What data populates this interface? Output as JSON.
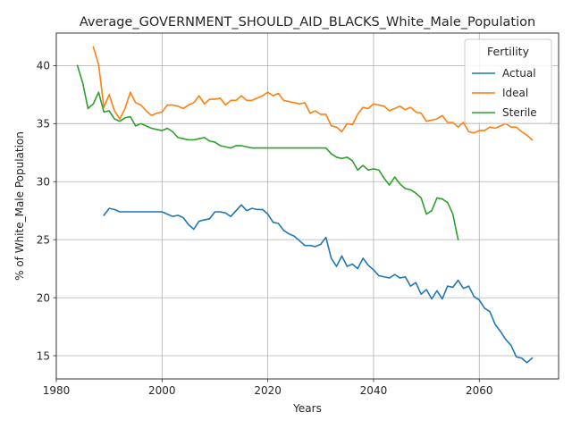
{
  "chart_data": {
    "type": "line",
    "title": "Average_GOVERNMENT_SHOULD_AID_BLACKS_White_Male_Population",
    "xlabel": "Years",
    "ylabel": "% of White_Male Population",
    "xlim": [
      1980,
      2075
    ],
    "ylim": [
      13,
      42.8
    ],
    "xticks": [
      1980,
      2000,
      2020,
      2040,
      2060
    ],
    "yticks": [
      15,
      20,
      25,
      30,
      35,
      40
    ],
    "grid": true,
    "legend": {
      "title": "Fertility",
      "placement": "top-right"
    },
    "series": [
      {
        "name": "Actual",
        "color": "#1f77b4",
        "x": [
          1989,
          1990,
          1991,
          1992,
          1993,
          1994,
          1995,
          1996,
          1997,
          1998,
          1999,
          2000,
          2001,
          2002,
          2003,
          2004,
          2005,
          2006,
          2007,
          2008,
          2009,
          2010,
          2011,
          2012,
          2013,
          2014,
          2015,
          2016,
          2017,
          2018,
          2019,
          2020,
          2021,
          2022,
          2023,
          2024,
          2025,
          2026,
          2027,
          2028,
          2029,
          2030,
          2031,
          2032,
          2033,
          2034,
          2035,
          2036,
          2037,
          2038,
          2039,
          2040,
          2041,
          2042,
          2043,
          2044,
          2045,
          2046,
          2047,
          2048,
          2049,
          2050,
          2051,
          2052,
          2053,
          2054,
          2055,
          2056,
          2057,
          2058,
          2059,
          2060,
          2061,
          2062,
          2063,
          2064,
          2065,
          2066,
          2067,
          2068,
          2069,
          2070
        ],
        "y": [
          27.1,
          27.7,
          27.6,
          27.4,
          27.4,
          27.4,
          27.4,
          27.4,
          27.4,
          27.4,
          27.4,
          27.4,
          27.2,
          27.0,
          27.1,
          26.9,
          26.3,
          25.9,
          26.6,
          26.7,
          26.8,
          27.4,
          27.4,
          27.3,
          27.0,
          27.5,
          28.0,
          27.5,
          27.7,
          27.6,
          27.6,
          27.2,
          26.5,
          26.4,
          25.8,
          25.5,
          25.3,
          24.9,
          24.5,
          24.5,
          24.4,
          24.6,
          25.2,
          23.4,
          22.7,
          23.6,
          22.7,
          22.9,
          22.5,
          23.4,
          22.8,
          22.4,
          21.9,
          21.8,
          21.7,
          22.0,
          21.7,
          21.8,
          21.0,
          21.3,
          20.3,
          20.7,
          19.9,
          20.6,
          19.9,
          21.0,
          20.9,
          21.5,
          20.8,
          21.0,
          20.1,
          19.8,
          19.1,
          18.8,
          17.7,
          17.1,
          16.4,
          15.9,
          14.9,
          14.8,
          14.4,
          14.8
        ]
      },
      {
        "name": "Ideal",
        "color": "#ff7f0e",
        "x": [
          1987,
          1988,
          1989,
          1990,
          1991,
          1992,
          1993,
          1994,
          1995,
          1996,
          1997,
          1998,
          1999,
          2000,
          2001,
          2002,
          2003,
          2004,
          2005,
          2006,
          2007,
          2008,
          2009,
          2010,
          2011,
          2012,
          2013,
          2014,
          2015,
          2016,
          2017,
          2018,
          2019,
          2020,
          2021,
          2022,
          2023,
          2024,
          2025,
          2026,
          2027,
          2028,
          2029,
          2030,
          2031,
          2032,
          2033,
          2034,
          2035,
          2036,
          2037,
          2038,
          2039,
          2040,
          2041,
          2042,
          2043,
          2044,
          2045,
          2046,
          2047,
          2048,
          2049,
          2050,
          2051,
          2052,
          2053,
          2054,
          2055,
          2056,
          2057,
          2058,
          2059,
          2060,
          2061,
          2062,
          2063,
          2064,
          2065,
          2066,
          2067,
          2068,
          2069,
          2070
        ],
        "y": [
          41.6,
          40.1,
          36.4,
          37.5,
          36.1,
          35.4,
          36.3,
          37.7,
          36.8,
          36.6,
          36.1,
          35.7,
          35.9,
          36.0,
          36.6,
          36.6,
          36.5,
          36.3,
          36.6,
          36.8,
          37.4,
          36.7,
          37.1,
          37.1,
          37.2,
          36.6,
          37.0,
          37.0,
          37.4,
          37.0,
          37.0,
          37.2,
          37.4,
          37.7,
          37.4,
          37.6,
          37.0,
          36.9,
          36.8,
          36.7,
          36.8,
          35.9,
          36.1,
          35.8,
          35.8,
          34.8,
          34.7,
          34.3,
          35.0,
          34.9,
          35.8,
          36.4,
          36.3,
          36.7,
          36.6,
          36.5,
          36.1,
          36.3,
          36.5,
          36.2,
          36.4,
          36.0,
          35.9,
          35.2,
          35.3,
          35.4,
          35.7,
          35.1,
          35.1,
          34.7,
          35.1,
          34.3,
          34.2,
          34.4,
          34.4,
          34.7,
          34.6,
          34.8,
          35.0,
          34.7,
          34.7,
          34.3,
          34.0,
          33.6
        ]
      },
      {
        "name": "Sterile",
        "color": "#2ca02c",
        "x": [
          1984,
          1985,
          1986,
          1987,
          1988,
          1989,
          1990,
          1991,
          1992,
          1993,
          1994,
          1995,
          1996,
          1997,
          1998,
          1999,
          2000,
          2001,
          2002,
          2003,
          2004,
          2005,
          2006,
          2007,
          2008,
          2009,
          2010,
          2011,
          2012,
          2013,
          2014,
          2015,
          2016,
          2017,
          2018,
          2019,
          2020,
          2021,
          2022,
          2023,
          2024,
          2025,
          2026,
          2027,
          2028,
          2029,
          2030,
          2031,
          2032,
          2033,
          2034,
          2035,
          2036,
          2037,
          2038,
          2039,
          2040,
          2041,
          2042,
          2043,
          2044,
          2045,
          2046,
          2047,
          2048,
          2049,
          2050,
          2051,
          2052,
          2053,
          2054,
          2055,
          2056
        ],
        "y": [
          40.0,
          38.5,
          36.3,
          36.7,
          37.7,
          36.0,
          36.1,
          35.4,
          35.2,
          35.5,
          35.6,
          34.8,
          35.0,
          34.8,
          34.6,
          34.5,
          34.4,
          34.6,
          34.3,
          33.8,
          33.7,
          33.6,
          33.6,
          33.7,
          33.8,
          33.5,
          33.4,
          33.1,
          33.0,
          32.9,
          33.1,
          33.1,
          33.0,
          32.9,
          32.9,
          32.9,
          32.9,
          32.9,
          32.9,
          32.9,
          32.9,
          32.9,
          32.9,
          32.9,
          32.9,
          32.9,
          32.9,
          32.9,
          32.4,
          32.1,
          32.0,
          32.1,
          31.8,
          31.0,
          31.4,
          31.0,
          31.1,
          31.0,
          30.3,
          29.7,
          30.4,
          29.8,
          29.4,
          29.3,
          29.0,
          28.6,
          27.2,
          27.5,
          28.6,
          28.5,
          28.2,
          27.2,
          25.0
        ]
      }
    ]
  }
}
